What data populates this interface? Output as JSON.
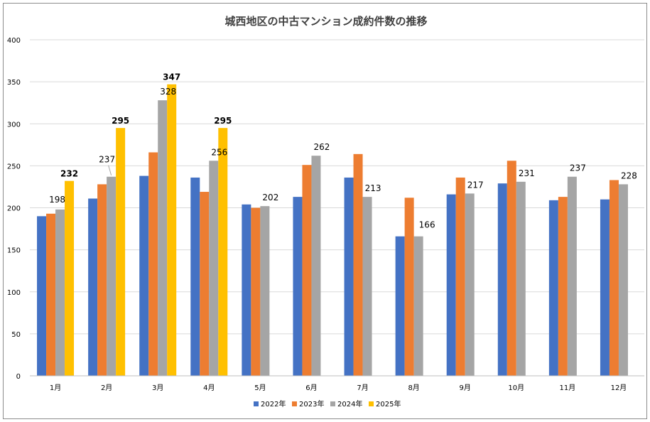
{
  "chart_data": {
    "type": "bar",
    "title": "城西地区の中古マンション成約件数の推移",
    "categories": [
      "1月",
      "2月",
      "3月",
      "4月",
      "5月",
      "6月",
      "7月",
      "8月",
      "9月",
      "10月",
      "11月",
      "12月"
    ],
    "series": [
      {
        "name": "2022年",
        "color": "#4472c4",
        "values": [
          190,
          211,
          238,
          236,
          204,
          213,
          236,
          166,
          216,
          229,
          209,
          210
        ]
      },
      {
        "name": "2023年",
        "color": "#ed7d31",
        "values": [
          193,
          228,
          266,
          219,
          200,
          251,
          264,
          212,
          236,
          256,
          213,
          233
        ]
      },
      {
        "name": "2024年",
        "color": "#a5a5a5",
        "values": [
          198,
          237,
          328,
          256,
          202,
          262,
          213,
          166,
          217,
          231,
          237,
          228
        ]
      },
      {
        "name": "2025年",
        "color": "#ffc000",
        "values": [
          232,
          295,
          347,
          295,
          null,
          null,
          null,
          null,
          null,
          null,
          null,
          null
        ]
      }
    ],
    "ylim": [
      0,
      400
    ],
    "yticks": [
      0,
      50,
      100,
      150,
      200,
      250,
      300,
      350,
      400
    ],
    "grid": true,
    "legend": "bottom",
    "data_labels": {
      "2024年": [
        "198",
        "237",
        "328",
        "256",
        "202",
        "262",
        "213",
        "166",
        "217",
        "231",
        "237",
        "228"
      ],
      "2025年": [
        "232",
        "295",
        "347",
        "295"
      ]
    }
  }
}
